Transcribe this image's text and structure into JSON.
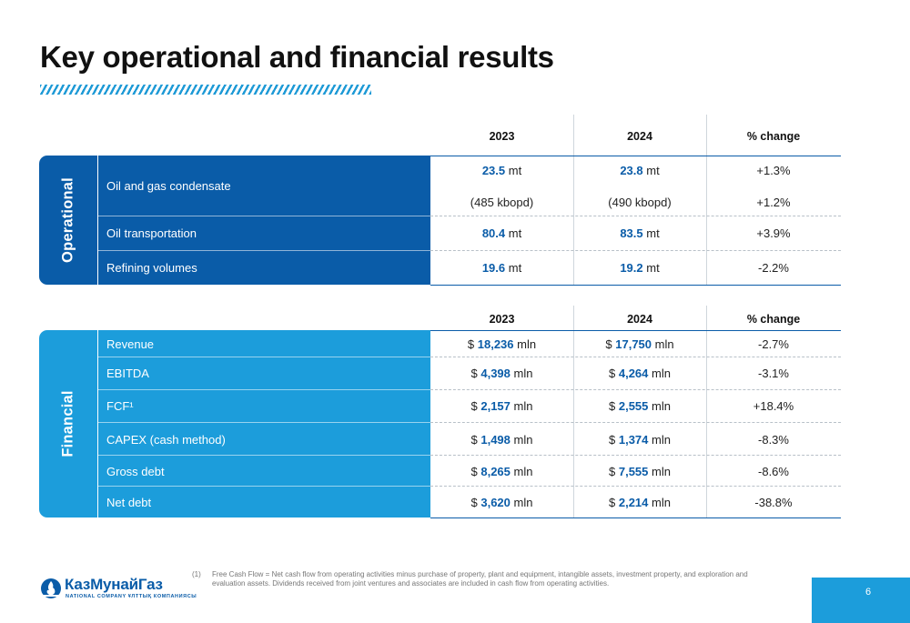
{
  "title": "Key operational and financial results",
  "colors": {
    "dark_blue": "#0a5ca8",
    "light_blue": "#1c9ddb",
    "accent": "#1e9ad6"
  },
  "operational": {
    "side_label": "Operational",
    "headers": {
      "y2023": "2023",
      "y2024": "2024",
      "change": "% change"
    },
    "rows": [
      {
        "label": "Oil and gas condensate",
        "v2023": "23.5",
        "u2023": " mt",
        "v2024": "23.8",
        "u2024": " mt",
        "change": "+1.3%",
        "sub2023": "(485 kbopd)",
        "sub2024": "(490 kbopd)",
        "subchange": "+1.2%"
      },
      {
        "label": "Oil transportation",
        "v2023": "80.4",
        "u2023": " mt",
        "v2024": "83.5",
        "u2024": " mt",
        "change": "+3.9%"
      },
      {
        "label": "Refining volumes",
        "v2023": "19.6",
        "u2023": " mt",
        "v2024": "19.2",
        "u2024": " mt",
        "change": "-2.2%"
      }
    ]
  },
  "financial": {
    "side_label": "Financial",
    "headers": {
      "y2023": "2023",
      "y2024": "2024",
      "change": "% change"
    },
    "currency": "$ ",
    "unit": " mln",
    "rows": [
      {
        "label": "Revenue",
        "v2023": "18,236",
        "v2024": "17,750",
        "change": "-2.7%"
      },
      {
        "label": "EBITDA",
        "v2023": "4,398",
        "v2024": "4,264",
        "change": "-3.1%"
      },
      {
        "label": "FCF¹",
        "v2023": "2,157",
        "v2024": "2,555",
        "change": "+18.4%"
      },
      {
        "label": "CAPEX (cash method)",
        "v2023": "1,498",
        "v2024": "1,374",
        "change": "-8.3%"
      },
      {
        "label": "Gross debt",
        "v2023": "8,265",
        "v2024": "7,555",
        "change": "-8.6%"
      },
      {
        "label": "Net debt",
        "v2023": "3,620",
        "v2024": "2,214",
        "change": "-38.8%"
      }
    ]
  },
  "footnote": {
    "index": "(1)",
    "text": "Free Cash Flow = Net cash flow from operating activities minus purchase of property, plant and equipment, intangible assets, investment property, and exploration and evaluation assets. Dividends received from joint ventures and associates are included in cash flow from operating activities."
  },
  "logo": {
    "name": "КазМунайГаз",
    "tagline": "NATIONAL COMPANY ҰЛТТЫҚ КОМПАНИЯСЫ",
    "icon": "flame-globe-icon"
  },
  "page_number": "6"
}
